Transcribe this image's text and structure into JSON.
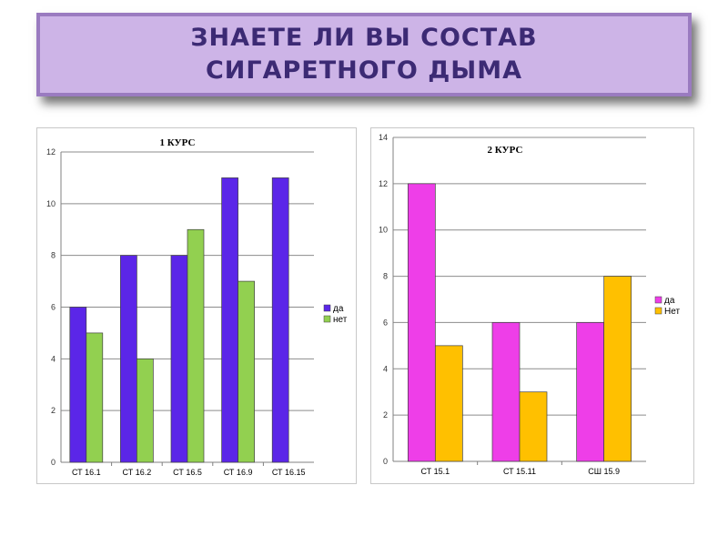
{
  "header": {
    "title": "ЗНАЕТЕ ЛИ ВЫ СОСТАВ СИГАРЕТНОГО ДЫМА"
  },
  "chart_data": [
    {
      "type": "bar",
      "title": "1 КУРС",
      "categories": [
        "СТ 16.1",
        "СТ 16.2",
        "СТ 16.5",
        "СТ 16.9",
        "СТ 16.15"
      ],
      "series": [
        {
          "name": "да",
          "values": [
            6,
            8,
            8,
            11,
            11
          ],
          "color": "#5b26e8"
        },
        {
          "name": "нет",
          "values": [
            5,
            4,
            9,
            7,
            null
          ],
          "color": "#92d050"
        }
      ],
      "ylim": [
        0,
        12
      ],
      "yticks": [
        0,
        2,
        4,
        6,
        8,
        10,
        12
      ],
      "grid": true,
      "legend": "right"
    },
    {
      "type": "bar",
      "title": "2 КУРС",
      "categories": [
        "СТ 15.1",
        "СТ 15.11",
        "СШ 15.9"
      ],
      "series": [
        {
          "name": "да",
          "values": [
            12,
            6,
            6
          ],
          "color": "#ee3ee8"
        },
        {
          "name": "Нет",
          "values": [
            5,
            3,
            8
          ],
          "color": "#ffc000"
        }
      ],
      "ylim": [
        0,
        14
      ],
      "yticks": [
        0,
        2,
        4,
        6,
        8,
        10,
        12,
        14
      ],
      "grid": true,
      "legend": "right"
    }
  ]
}
